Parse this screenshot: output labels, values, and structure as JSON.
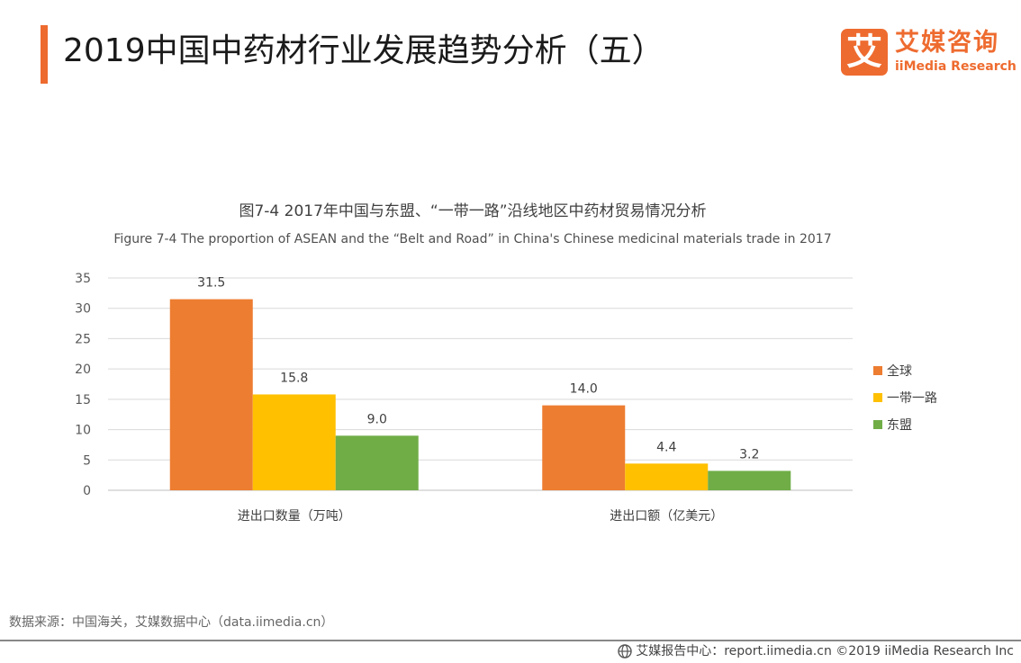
{
  "header": {
    "title": "2019中国中药材行业发展趋势分析（五）"
  },
  "logo": {
    "mark": "艾",
    "cn": "艾媒咨询",
    "en": "iiMedia Research"
  },
  "chart_data": {
    "type": "bar",
    "title": "图7-4 2017年中国与东盟、“一带一路”沿线地区中药材贸易情况分析",
    "subtitle": "Figure 7-4 The proportion of ASEAN and the “Belt and Road” in China's Chinese medicinal materials trade in 2017",
    "categories": [
      "进出口数量（万吨）",
      "进出口额（亿美元）"
    ],
    "series": [
      {
        "name": "全球",
        "color": "#ed7d31",
        "values": [
          31.5,
          14.0
        ],
        "labels": [
          "31.5",
          "14.0"
        ]
      },
      {
        "name": "一带一路",
        "color": "#ffc000",
        "values": [
          15.8,
          4.4
        ],
        "labels": [
          "15.8",
          "4.4"
        ]
      },
      {
        "name": "东盟",
        "color": "#70ad47",
        "values": [
          9.0,
          3.2
        ],
        "labels": [
          "9.0",
          "3.2"
        ]
      }
    ],
    "ylim": [
      0,
      35
    ],
    "yticks": [
      0,
      5,
      10,
      15,
      20,
      25,
      30,
      35
    ],
    "grid": true,
    "legend": "right"
  },
  "footer": {
    "source": "数据来源：中国海关，艾媒数据中心（data.iimedia.cn）",
    "report": "艾媒报告中心：report.iimedia.cn  ©2019  iiMedia Research  Inc"
  }
}
